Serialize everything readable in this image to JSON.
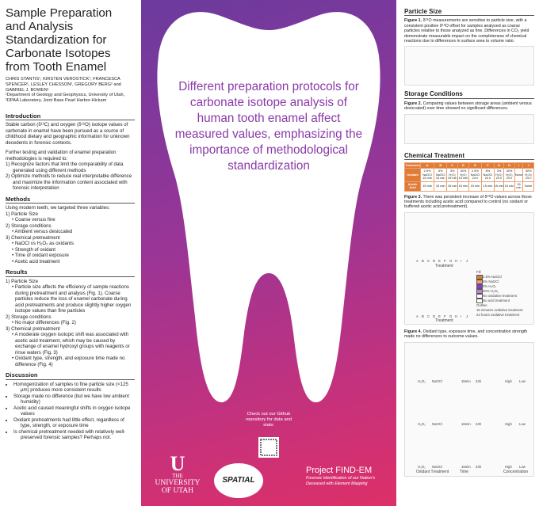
{
  "title": "Sample Preparation and Analysis Standardization for Carbonate Isotopes from Tooth Enamel",
  "authors": "CHRIS STANTIS¹, KIRSTEN VEROSTICK¹, FRANCESCA SPENCER¹, LESLEY CHESSON², GREGORY BERG² and GABRIEL J. BOWEN¹",
  "affiliations": "¹Department of Geology and Geophysics, University of Utah, ²DPAA Laboratory, Joint Base Pearl Harbor-Hickam",
  "introduction": {
    "heading": "Introduction",
    "p1": "Stable carbon (δ¹³C) and oxygen (δ¹⁸O) isotope values of carbonate in enamel have been pursued as a source of childhood dietary and geographic information for unknown decedents in forensic contexts.",
    "p2": "Further testing and validation of enamel preparation methodologies is required to:",
    "items": [
      "1)  Recognize factors that limit the comparability of data generated using different methods",
      "2)  Optimize methods to reduce real interpretable difference and maximize the information content associated with forensic interpretation"
    ]
  },
  "methods": {
    "heading": "Methods",
    "intro": "Using modern teeth, we targeted three variables:",
    "items": [
      "1)  Particle Size",
      "•  Coarse versus fine",
      "2)  Storage conditions",
      "•  Ambient versus desiccated",
      "3)  Chemical pretreatment",
      "•  NaOCl vs H₂O₂ as oxidants",
      "•  Strength of oxidant",
      "•  Time of  oxidant exposure",
      "•  Acetic acid treatment"
    ]
  },
  "results": {
    "heading": "Results",
    "items": [
      "1)  Particle Size",
      "•  Particle size affects the efficiency of sample reactions during pretreatment and analysis (Fig. 1). Coarse particles reduce the loss of enamel carbonate during acid pretreatments and produce slightly higher oxygen isotope values than fine particles",
      "2)  Storage conditions",
      "•  No major differences (Fig. 2)",
      "3)  Chemical pretreatment",
      "•  A moderate oxygen isotopic shift was associated with acetic acid treatment, which may be caused by exchange of enamel hydroxyl groups with reagents or rinse waters (Fig. 3)",
      "•  Oxidant type, strength, and exposure time made no difference (Fig. 4)"
    ]
  },
  "discussion": {
    "heading": "Discussion",
    "items": [
      "Homogenization of samples to fine particle size (<125 µm) produces more consistent results",
      "Storage made no difference (but we have low ambient humidity)",
      "Acetic acid caused meaningful shifts in oxygen isotope values",
      "Oxidant pretreatments had little effect, regardless of type, strength, or exposure time",
      "Is chemical pretreatment needed with relatively well-preserved forensic samples? Perhaps not."
    ]
  },
  "center": {
    "message": "Different preparation protocols for carbonate isotope analysis of human tooth enamel affect measured values, emphasizing the importance of methodological standardization",
    "github": "Check out our Github repository for data and stats:",
    "logos": {
      "utah_top": "THE",
      "utah_main": "UNIVERSITY",
      "utah_bottom": "OF UTAH",
      "spatial": "SPATIAL",
      "findem_title": "Project FIND-EM",
      "findem_sub": "Forensic Identification of our Nation's Deceased with Element Mapping"
    }
  },
  "particle_size": {
    "heading": "Particle Size",
    "caption_label": "Figure 1.",
    "caption": "δ¹⁸O measurements are sensitive to particle size, with a consistent positive δ¹⁸O offset for samples analyzed as coarse particles relative to those analyzed as fine. Differences in CO₂ yield demonstrate measurable impact on the completeness of chemical reactions due to differences in surface area to volume ratio."
  },
  "storage": {
    "heading": "Storage Conditions",
    "caption_label": "Figure 2.",
    "caption": "Comparing values between storage areas (ambient versus desiccated) over time showed no significant differences."
  },
  "chemical": {
    "heading": "Chemical Treatment",
    "table": {
      "rows": [
        [
          "Treatment",
          "A",
          "B",
          "C",
          "D",
          "E",
          "F",
          "G",
          "H",
          "I",
          "J"
        ],
        [
          "Oxidant",
          "2.5% NaOCl 15 min",
          "5% NaOCl 15 min",
          "3% H₂O₂ 15 min",
          "30% H₂O₂ 15 min",
          "2.5% NaOCl 24 h",
          "5% NaOCl 24 h",
          "3% H₂O₂ 24 h",
          "30% H₂O₂ 24 h",
          "None",
          "30% H₂O₂ 24 h"
        ],
        [
          "Acetic Acid",
          "15 min",
          "15 min",
          "15 min",
          "15 min",
          "15 min",
          "15 min",
          "15 min",
          "15 min",
          "15 min",
          "None"
        ]
      ]
    },
    "fig3_label": "Figure 3.",
    "fig3_caption": "There was persistent increase of δ¹⁸O values across those treatments including acetic acid compared to control (no oxidant or buffered acetic acid pretreatment).",
    "fig3_xlabel": "Treatment",
    "fig3_categories": [
      "A",
      "B",
      "C",
      "D",
      "E",
      "F",
      "G",
      "H",
      "I",
      "J"
    ],
    "fig3_legend": [
      "Fill",
      "2.5% NaOCl",
      "5% NaOCl",
      "3% H₂O₂",
      "30% H₂O₂",
      "No oxidative treatment",
      "No acid treatment",
      "Outline",
      "15 minutes oxidative treatment",
      "24 hours oxidative treatment"
    ],
    "fig4_label": "Figure 4.",
    "fig4_caption": "Oxidant type, exposure time, and concentration strength made no differences to outcome values.",
    "fig4_groups": [
      [
        "H₂O₂",
        "NaOCl"
      ],
      [
        "15min",
        "24h"
      ],
      [
        "High",
        "Low"
      ]
    ],
    "fig4_xlabels": [
      "Oxidant Treatment",
      "Time",
      "Concentration"
    ]
  }
}
